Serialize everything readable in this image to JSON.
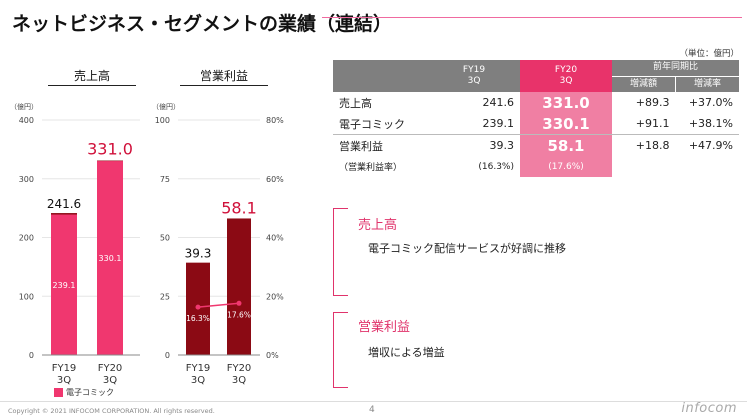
{
  "title": "ネットビジネス・セグメントの業績（連結）",
  "chart_data": [
    {
      "type": "bar",
      "title": "売上高",
      "ylabel": "（億円）",
      "ylim": [
        0,
        400
      ],
      "yticks": [
        "0",
        "100",
        "200",
        "300",
        "400"
      ],
      "categories": [
        "FY19\n3Q",
        "FY20\n3Q"
      ],
      "category_lines": [
        [
          "FY19",
          "3Q"
        ],
        [
          "FY20",
          "3Q"
        ]
      ],
      "values": [
        241.6,
        331.0
      ],
      "value_labels": [
        "241.6",
        "331.0"
      ],
      "series": [
        {
          "name": "電子コミック",
          "values": [
            239.1,
            330.1
          ],
          "labels": [
            "239.1",
            "330.1"
          ]
        }
      ],
      "legend": "電子コミック"
    },
    {
      "type": "bar",
      "title": "営業利益",
      "ylabel": "（億円）",
      "ylim": [
        0,
        100
      ],
      "yticks": [
        "0",
        "25",
        "50",
        "75",
        "100"
      ],
      "y2lim": [
        0,
        80
      ],
      "y2ticks": [
        "0%",
        "20%",
        "40%",
        "60%",
        "80%"
      ],
      "categories": [
        "FY19\n3Q",
        "FY20\n3Q"
      ],
      "category_lines": [
        [
          "FY19",
          "3Q"
        ],
        [
          "FY20",
          "3Q"
        ]
      ],
      "values": [
        39.3,
        58.1
      ],
      "value_labels": [
        "39.3",
        "58.1"
      ],
      "line_series": {
        "name": "営業利益率",
        "values": [
          16.3,
          17.6
        ],
        "labels": [
          "16.3%",
          "17.6%"
        ]
      }
    }
  ],
  "table": {
    "unit": "（単位：億円）",
    "headers": {
      "fy19": "FY19\n3Q",
      "fy20": "FY20\n3Q",
      "yoy": "前年同期比",
      "diff": "増減額",
      "rate": "増減率"
    },
    "rows": [
      {
        "label": "売上高",
        "fy19": "241.6",
        "fy20": "331.0",
        "diff": "+89.3",
        "rate": "+37.0%"
      },
      {
        "label": "電子コミック",
        "fy19": "239.1",
        "fy20": "330.1",
        "diff": "+91.1",
        "rate": "+38.1%"
      },
      {
        "label": "営業利益",
        "fy19": "39.3",
        "fy20": "58.1",
        "diff": "+18.8",
        "rate": "+47.9%"
      },
      {
        "label": "（営業利益率）",
        "fy19": "(16.3%)",
        "fy20": "(17.6%)",
        "diff": "",
        "rate": ""
      }
    ]
  },
  "notes": [
    {
      "heading": "売上高",
      "body": "電子コミック配信サービスが好調に推移"
    },
    {
      "heading": "営業利益",
      "body": "増収による増益"
    }
  ],
  "footer": {
    "copyright": "Copyright © 2021 INFOCOM CORPORATION. All rights reserved.",
    "page": "4",
    "logo": "infocom"
  },
  "colors": {
    "accent": "#e8336a",
    "bar1": "#f0376f",
    "bar2": "#8b0a14",
    "fy20_cell": "#f07fa3",
    "header": "#7f7f7f"
  }
}
